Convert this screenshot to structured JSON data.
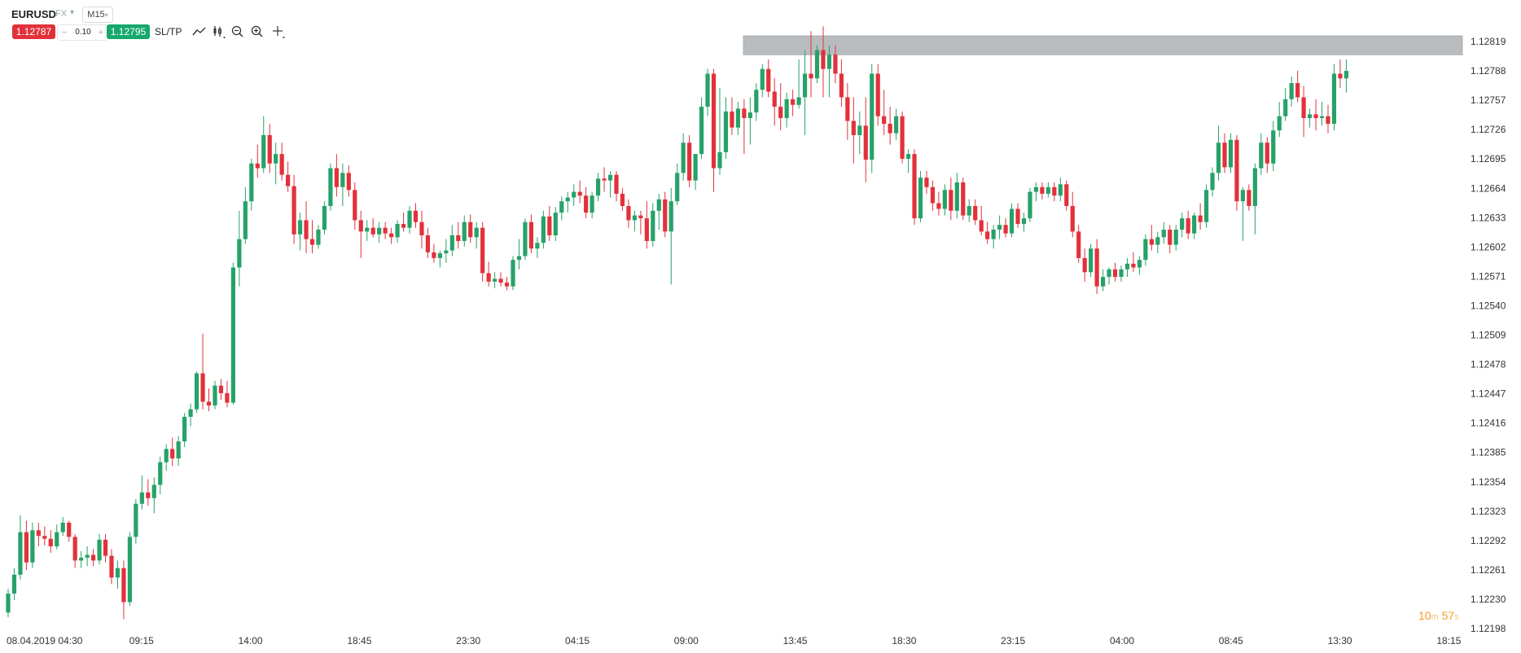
{
  "toolbar": {
    "symbol": "EURUSD",
    "market": "FX",
    "timeframe": "M15",
    "sell_price": "1.12787",
    "lot_minus": "−",
    "lot_size": "0.10",
    "lot_plus": "+",
    "buy_price": "1.12795",
    "sltp_label": "SL/TP",
    "tools": [
      "trend-line-icon",
      "indicators-icon",
      "zoom-out-icon",
      "zoom-in-icon",
      "crosshair-icon"
    ]
  },
  "countdown": {
    "minutes": "10",
    "minutes_unit": "m",
    "seconds": "57",
    "seconds_unit": "s"
  },
  "colors": {
    "bull": "#26a269",
    "bear": "#e2313b",
    "zone": "#b9bcbf",
    "sell": "#e2313b",
    "buy": "#16a86c",
    "countdown": "#f59b23"
  },
  "chart_data": {
    "type": "candlestick",
    "symbol": "EURUSD",
    "timeframe": "M15",
    "x_start": "08.04.2019 04:30",
    "x_tick_labels": [
      "08.04.2019 04:30",
      "09:15",
      "14:00",
      "18:45",
      "23:30",
      "04:15",
      "09:00",
      "13:45",
      "18:30",
      "23:15",
      "04:00",
      "08:45",
      "13:30",
      "18:15"
    ],
    "y_tick_labels": [
      "1.12819",
      "1.12788",
      "1.12757",
      "1.12726",
      "1.12695",
      "1.12664",
      "1.12633",
      "1.12602",
      "1.12571",
      "1.12540",
      "1.12509",
      "1.12478",
      "1.12447",
      "1.12416",
      "1.12385",
      "1.12354",
      "1.12323",
      "1.12292",
      "1.12261",
      "1.12230",
      "1.12198"
    ],
    "ylim": [
      1.12198,
      1.12819
    ],
    "resistance_zone": {
      "low": 1.12805,
      "high": 1.12825,
      "type": "resistance"
    },
    "last_price": 1.12787,
    "candles_ohlc": [
      [
        1.12215,
        1.1224,
        1.1221,
        1.12235
      ],
      [
        1.12235,
        1.12262,
        1.12228,
        1.12255
      ],
      [
        1.12255,
        1.12318,
        1.1225,
        1.123
      ],
      [
        1.123,
        1.12312,
        1.1226,
        1.12268
      ],
      [
        1.12268,
        1.1231,
        1.12262,
        1.12302
      ],
      [
        1.12302,
        1.1231,
        1.12285,
        1.12296
      ],
      [
        1.12296,
        1.12306,
        1.12286,
        1.12293
      ],
      [
        1.12293,
        1.12302,
        1.12278,
        1.12285
      ],
      [
        1.12285,
        1.12308,
        1.12282,
        1.123
      ],
      [
        1.123,
        1.12316,
        1.12296,
        1.1231
      ],
      [
        1.1231,
        1.12312,
        1.1229,
        1.12295
      ],
      [
        1.12295,
        1.12298,
        1.12262,
        1.1227
      ],
      [
        1.1227,
        1.1228,
        1.12262,
        1.12273
      ],
      [
        1.12273,
        1.12285,
        1.12264,
        1.12276
      ],
      [
        1.12276,
        1.12282,
        1.12264,
        1.1227
      ],
      [
        1.1227,
        1.12298,
        1.12266,
        1.12292
      ],
      [
        1.12292,
        1.12298,
        1.12268,
        1.12275
      ],
      [
        1.12275,
        1.12282,
        1.12245,
        1.12252
      ],
      [
        1.12252,
        1.1227,
        1.1224,
        1.12262
      ],
      [
        1.12262,
        1.1227,
        1.12208,
        1.12226
      ],
      [
        1.12226,
        1.123,
        1.12222,
        1.12295
      ],
      [
        1.12295,
        1.12335,
        1.12288,
        1.1233
      ],
      [
        1.1233,
        1.1236,
        1.12324,
        1.12342
      ],
      [
        1.12342,
        1.12356,
        1.12328,
        1.12336
      ],
      [
        1.12336,
        1.12358,
        1.1232,
        1.1235
      ],
      [
        1.1235,
        1.1238,
        1.1234,
        1.12374
      ],
      [
        1.12374,
        1.12393,
        1.12365,
        1.12388
      ],
      [
        1.12388,
        1.124,
        1.1237,
        1.12378
      ],
      [
        1.12378,
        1.12402,
        1.1237,
        1.12396
      ],
      [
        1.12396,
        1.12426,
        1.1239,
        1.12422
      ],
      [
        1.12422,
        1.12436,
        1.12412,
        1.1243
      ],
      [
        1.1243,
        1.1247,
        1.12426,
        1.12468
      ],
      [
        1.12468,
        1.1251,
        1.1243,
        1.12438
      ],
      [
        1.12438,
        1.12452,
        1.12428,
        1.12434
      ],
      [
        1.12434,
        1.1246,
        1.1243,
        1.12455
      ],
      [
        1.12455,
        1.12462,
        1.1244,
        1.12447
      ],
      [
        1.12447,
        1.1246,
        1.12432,
        1.12437
      ],
      [
        1.12437,
        1.12585,
        1.12435,
        1.1258
      ],
      [
        1.1258,
        1.1264,
        1.1256,
        1.1261
      ],
      [
        1.1261,
        1.12665,
        1.12605,
        1.1265
      ],
      [
        1.1265,
        1.12695,
        1.1264,
        1.1269
      ],
      [
        1.1269,
        1.1271,
        1.12675,
        1.12685
      ],
      [
        1.12685,
        1.1274,
        1.1268,
        1.1272
      ],
      [
        1.1272,
        1.12732,
        1.1268,
        1.1269
      ],
      [
        1.1269,
        1.12712,
        1.12668,
        1.127
      ],
      [
        1.127,
        1.12712,
        1.12672,
        1.12678
      ],
      [
        1.12678,
        1.12692,
        1.1266,
        1.12666
      ],
      [
        1.12666,
        1.12678,
        1.12605,
        1.12615
      ],
      [
        1.12615,
        1.12638,
        1.12598,
        1.1263
      ],
      [
        1.1263,
        1.1265,
        1.12595,
        1.1261
      ],
      [
        1.1261,
        1.1263,
        1.12595,
        1.12604
      ],
      [
        1.12604,
        1.12625,
        1.126,
        1.1262
      ],
      [
        1.1262,
        1.1265,
        1.12615,
        1.12645
      ],
      [
        1.12645,
        1.1269,
        1.1264,
        1.12685
      ],
      [
        1.12685,
        1.127,
        1.12655,
        1.12665
      ],
      [
        1.12665,
        1.1269,
        1.12645,
        1.1268
      ],
      [
        1.1268,
        1.12688,
        1.12655,
        1.12662
      ],
      [
        1.12662,
        1.1267,
        1.1262,
        1.1263
      ],
      [
        1.1263,
        1.1264,
        1.1259,
        1.12618
      ],
      [
        1.12618,
        1.1263,
        1.12608,
        1.12622
      ],
      [
        1.12622,
        1.12632,
        1.12612,
        1.12615
      ],
      [
        1.12615,
        1.12628,
        1.12606,
        1.12622
      ],
      [
        1.12622,
        1.12628,
        1.1261,
        1.12616
      ],
      [
        1.12616,
        1.12622,
        1.12605,
        1.12612
      ],
      [
        1.12612,
        1.1263,
        1.12606,
        1.12626
      ],
      [
        1.12626,
        1.12638,
        1.12618,
        1.12622
      ],
      [
        1.12622,
        1.12645,
        1.12616,
        1.1264
      ],
      [
        1.1264,
        1.12648,
        1.12622,
        1.12628
      ],
      [
        1.12628,
        1.1264,
        1.126,
        1.12614
      ],
      [
        1.12614,
        1.12622,
        1.1259,
        1.12596
      ],
      [
        1.12596,
        1.12605,
        1.12585,
        1.1259
      ],
      [
        1.1259,
        1.12598,
        1.1258,
        1.12595
      ],
      [
        1.12595,
        1.1261,
        1.12585,
        1.12598
      ],
      [
        1.12598,
        1.12625,
        1.12592,
        1.12614
      ],
      [
        1.12614,
        1.12628,
        1.126,
        1.12608
      ],
      [
        1.12608,
        1.12635,
        1.12602,
        1.12628
      ],
      [
        1.12628,
        1.12636,
        1.12606,
        1.12612
      ],
      [
        1.12612,
        1.12628,
        1.126,
        1.12622
      ],
      [
        1.12622,
        1.12628,
        1.12565,
        1.12574
      ],
      [
        1.12574,
        1.12586,
        1.1256,
        1.12565
      ],
      [
        1.12565,
        1.12575,
        1.12558,
        1.12568
      ],
      [
        1.12568,
        1.12575,
        1.1256,
        1.12564
      ],
      [
        1.12564,
        1.1257,
        1.12556,
        1.1256
      ],
      [
        1.1256,
        1.12592,
        1.12556,
        1.12588
      ],
      [
        1.12588,
        1.1261,
        1.12578,
        1.12592
      ],
      [
        1.12592,
        1.12632,
        1.12588,
        1.12628
      ],
      [
        1.12628,
        1.12636,
        1.12595,
        1.126
      ],
      [
        1.126,
        1.12612,
        1.1259,
        1.12606
      ],
      [
        1.12606,
        1.1264,
        1.126,
        1.12634
      ],
      [
        1.12634,
        1.12645,
        1.12608,
        1.12614
      ],
      [
        1.12614,
        1.12644,
        1.12608,
        1.12638
      ],
      [
        1.12638,
        1.12655,
        1.1263,
        1.1265
      ],
      [
        1.1265,
        1.1266,
        1.12638,
        1.12654
      ],
      [
        1.12654,
        1.12668,
        1.12645,
        1.1266
      ],
      [
        1.1266,
        1.12672,
        1.12648,
        1.12656
      ],
      [
        1.12656,
        1.12665,
        1.12632,
        1.12638
      ],
      [
        1.12638,
        1.1266,
        1.12632,
        1.12656
      ],
      [
        1.12656,
        1.1268,
        1.1265,
        1.12674
      ],
      [
        1.12674,
        1.12686,
        1.1266,
        1.12672
      ],
      [
        1.12672,
        1.12682,
        1.12654,
        1.12678
      ],
      [
        1.12678,
        1.12682,
        1.1265,
        1.12658
      ],
      [
        1.12658,
        1.12664,
        1.1264,
        1.12645
      ],
      [
        1.12645,
        1.12652,
        1.12622,
        1.1263
      ],
      [
        1.1263,
        1.1264,
        1.12618,
        1.12635
      ],
      [
        1.12635,
        1.1264,
        1.12615,
        1.12632
      ],
      [
        1.12632,
        1.1265,
        1.126,
        1.12608
      ],
      [
        1.12608,
        1.12648,
        1.12602,
        1.1264
      ],
      [
        1.1264,
        1.12658,
        1.1262,
        1.12652
      ],
      [
        1.12652,
        1.1266,
        1.12612,
        1.12618
      ],
      [
        1.12618,
        1.12664,
        1.12562,
        1.1265
      ],
      [
        1.1265,
        1.1269,
        1.12646,
        1.1268
      ],
      [
        1.1268,
        1.12722,
        1.12672,
        1.12712
      ],
      [
        1.12712,
        1.1272,
        1.12665,
        1.12672
      ],
      [
        1.12672,
        1.127,
        1.12662,
        1.127
      ],
      [
        1.127,
        1.1276,
        1.12695,
        1.1275
      ],
      [
        1.1275,
        1.1279,
        1.1274,
        1.12785
      ],
      [
        1.12785,
        1.1279,
        1.1266,
        1.12685
      ],
      [
        1.12685,
        1.1277,
        1.12678,
        1.12702
      ],
      [
        1.12702,
        1.1276,
        1.12695,
        1.12745
      ],
      [
        1.12745,
        1.1276,
        1.1272,
        1.12728
      ],
      [
        1.12728,
        1.12755,
        1.1272,
        1.12748
      ],
      [
        1.12748,
        1.12758,
        1.127,
        1.12738
      ],
      [
        1.12738,
        1.1276,
        1.1271,
        1.12744
      ],
      [
        1.12744,
        1.12775,
        1.12735,
        1.12768
      ],
      [
        1.12768,
        1.12795,
        1.1276,
        1.1279
      ],
      [
        1.1279,
        1.128,
        1.1276,
        1.12766
      ],
      [
        1.12766,
        1.1278,
        1.1273,
        1.1275
      ],
      [
        1.1275,
        1.12775,
        1.12725,
        1.12738
      ],
      [
        1.12738,
        1.12765,
        1.12728,
        1.12758
      ],
      [
        1.12758,
        1.12768,
        1.1274,
        1.12752
      ],
      [
        1.12752,
        1.128,
        1.12748,
        1.1276
      ],
      [
        1.1276,
        1.1281,
        1.1272,
        1.12785
      ],
      [
        1.12785,
        1.1283,
        1.1276,
        1.1278
      ],
      [
        1.1278,
        1.12815,
        1.12775,
        1.1281
      ],
      [
        1.1281,
        1.12835,
        1.1276,
        1.1279
      ],
      [
        1.1279,
        1.12815,
        1.1276,
        1.12805
      ],
      [
        1.12805,
        1.12815,
        1.12775,
        1.12785
      ],
      [
        1.12785,
        1.128,
        1.1275,
        1.1276
      ],
      [
        1.1276,
        1.12775,
        1.12715,
        1.12735
      ],
      [
        1.12735,
        1.1276,
        1.1269,
        1.1272
      ],
      [
        1.1272,
        1.12745,
        1.127,
        1.1273
      ],
      [
        1.1273,
        1.1276,
        1.1267,
        1.12694
      ],
      [
        1.12694,
        1.12795,
        1.1268,
        1.12785
      ],
      [
        1.12785,
        1.12795,
        1.1273,
        1.1274
      ],
      [
        1.1274,
        1.12768,
        1.1272,
        1.12732
      ],
      [
        1.12732,
        1.1275,
        1.1271,
        1.12722
      ],
      [
        1.12722,
        1.12748,
        1.12715,
        1.1274
      ],
      [
        1.1274,
        1.12745,
        1.1269,
        1.12695
      ],
      [
        1.12695,
        1.12705,
        1.1268,
        1.127
      ],
      [
        1.127,
        1.12705,
        1.12625,
        1.12632
      ],
      [
        1.12632,
        1.12682,
        1.12628,
        1.12675
      ],
      [
        1.12675,
        1.12682,
        1.12658,
        1.12665
      ],
      [
        1.12665,
        1.12672,
        1.1264,
        1.12648
      ],
      [
        1.12648,
        1.1266,
        1.12635,
        1.12642
      ],
      [
        1.12642,
        1.12668,
        1.12635,
        1.12662
      ],
      [
        1.12662,
        1.12675,
        1.1263,
        1.1264
      ],
      [
        1.1264,
        1.1268,
        1.12632,
        1.1267
      ],
      [
        1.1267,
        1.12675,
        1.1263,
        1.12635
      ],
      [
        1.12635,
        1.12652,
        1.12628,
        1.12645
      ],
      [
        1.12645,
        1.12652,
        1.12625,
        1.1263
      ],
      [
        1.1263,
        1.12645,
        1.12614,
        1.12618
      ],
      [
        1.12618,
        1.12628,
        1.12605,
        1.1261
      ],
      [
        1.1261,
        1.12625,
        1.126,
        1.1262
      ],
      [
        1.1262,
        1.12635,
        1.1261,
        1.12625
      ],
      [
        1.12625,
        1.12632,
        1.12612,
        1.12616
      ],
      [
        1.12616,
        1.12648,
        1.12612,
        1.12642
      ],
      [
        1.12642,
        1.12648,
        1.12622,
        1.12626
      ],
      [
        1.12626,
        1.12638,
        1.12618,
        1.12632
      ],
      [
        1.12632,
        1.12664,
        1.12628,
        1.1266
      ],
      [
        1.1266,
        1.1267,
        1.1265,
        1.12665
      ],
      [
        1.12665,
        1.1267,
        1.12652,
        1.12658
      ],
      [
        1.12658,
        1.1267,
        1.12654,
        1.12665
      ],
      [
        1.12665,
        1.1267,
        1.1265,
        1.12656
      ],
      [
        1.12656,
        1.12675,
        1.1265,
        1.12668
      ],
      [
        1.12668,
        1.12672,
        1.1264,
        1.12645
      ],
      [
        1.12645,
        1.1266,
        1.12612,
        1.12618
      ],
      [
        1.12618,
        1.12625,
        1.12585,
        1.1259
      ],
      [
        1.1259,
        1.126,
        1.12565,
        1.12575
      ],
      [
        1.12575,
        1.12605,
        1.1257,
        1.126
      ],
      [
        1.126,
        1.1261,
        1.12552,
        1.1256
      ],
      [
        1.1256,
        1.12578,
        1.12555,
        1.1257
      ],
      [
        1.1257,
        1.1258,
        1.12562,
        1.12578
      ],
      [
        1.12578,
        1.12585,
        1.12565,
        1.1257
      ],
      [
        1.1257,
        1.12582,
        1.12565,
        1.12578
      ],
      [
        1.12578,
        1.1259,
        1.1257,
        1.12584
      ],
      [
        1.12584,
        1.12596,
        1.12575,
        1.1258
      ],
      [
        1.1258,
        1.12592,
        1.12572,
        1.12588
      ],
      [
        1.12588,
        1.12615,
        1.12582,
        1.1261
      ],
      [
        1.1261,
        1.12625,
        1.12598,
        1.12604
      ],
      [
        1.12604,
        1.12618,
        1.12595,
        1.12612
      ],
      [
        1.12612,
        1.12628,
        1.12605,
        1.1262
      ],
      [
        1.1262,
        1.12625,
        1.12595,
        1.12604
      ],
      [
        1.12604,
        1.12625,
        1.12598,
        1.1262
      ],
      [
        1.1262,
        1.12638,
        1.12612,
        1.12632
      ],
      [
        1.12632,
        1.1264,
        1.1261,
        1.12616
      ],
      [
        1.12616,
        1.12638,
        1.1261,
        1.12635
      ],
      [
        1.12635,
        1.12648,
        1.1262,
        1.12628
      ],
      [
        1.12628,
        1.12668,
        1.12622,
        1.12662
      ],
      [
        1.12662,
        1.12686,
        1.12655,
        1.1268
      ],
      [
        1.1268,
        1.1273,
        1.12672,
        1.12712
      ],
      [
        1.12712,
        1.12722,
        1.1268,
        1.12686
      ],
      [
        1.12686,
        1.12722,
        1.1268,
        1.12715
      ],
      [
        1.12715,
        1.1272,
        1.1264,
        1.1265
      ],
      [
        1.1265,
        1.12665,
        1.12608,
        1.12662
      ],
      [
        1.12662,
        1.12668,
        1.1264,
        1.12645
      ],
      [
        1.12645,
        1.1269,
        1.12615,
        1.12685
      ],
      [
        1.12685,
        1.12722,
        1.12678,
        1.12712
      ],
      [
        1.12712,
        1.12718,
        1.1268,
        1.1269
      ],
      [
        1.1269,
        1.12735,
        1.12682,
        1.12725
      ],
      [
        1.12725,
        1.12755,
        1.12718,
        1.1274
      ],
      [
        1.1274,
        1.1277,
        1.12735,
        1.12758
      ],
      [
        1.12758,
        1.12782,
        1.1275,
        1.12775
      ],
      [
        1.12775,
        1.12788,
        1.12755,
        1.1276
      ],
      [
        1.1276,
        1.12772,
        1.12718,
        1.12738
      ],
      [
        1.12738,
        1.12748,
        1.12728,
        1.12742
      ],
      [
        1.12742,
        1.12758,
        1.12725,
        1.12738
      ],
      [
        1.12738,
        1.12755,
        1.1273,
        1.1274
      ],
      [
        1.1274,
        1.12752,
        1.12722,
        1.12732
      ],
      [
        1.12732,
        1.12795,
        1.12725,
        1.12785
      ],
      [
        1.12785,
        1.128,
        1.1277,
        1.1278
      ],
      [
        1.1278,
        1.128,
        1.12765,
        1.12788
      ]
    ]
  }
}
